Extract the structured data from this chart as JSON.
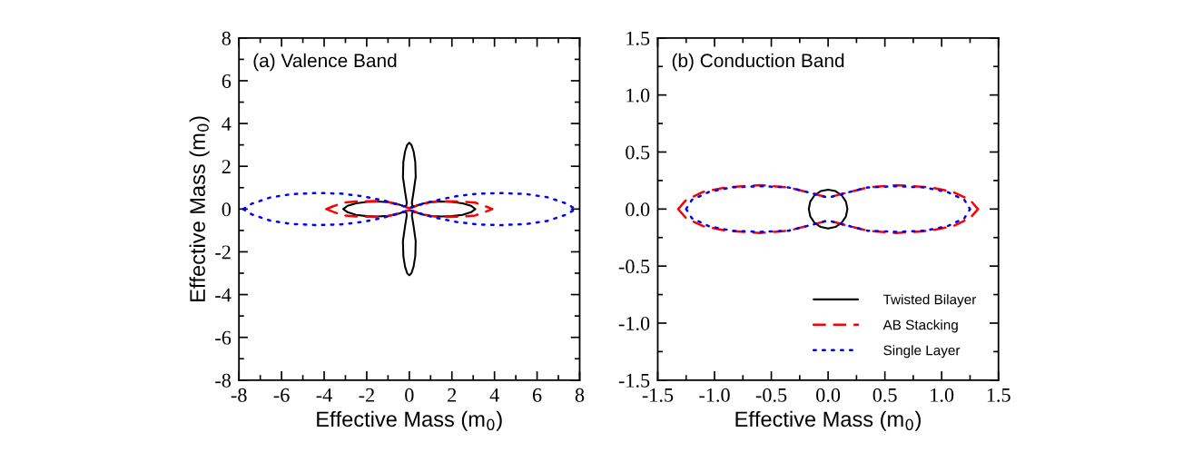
{
  "chart_data": [
    {
      "type": "line",
      "title": "(a) Valence Band",
      "xlabel": "Effective Mass (m$_{0}$)",
      "ylabel": "Effective Mass (m$_{0}$)",
      "xlim": [
        -8,
        8
      ],
      "ylim": [
        -8,
        8
      ],
      "xticks": [
        -8,
        -6,
        -4,
        -2,
        0,
        2,
        4,
        6,
        8
      ],
      "yticks": [
        -8,
        -6,
        -4,
        -2,
        0,
        2,
        4,
        6,
        8
      ],
      "grid": false,
      "legend": false,
      "series": [
        {
          "color": "#000000",
          "line_style": "solid",
          "x": [
            -3.1,
            -2.9,
            -2.5,
            -2.0,
            -1.5,
            -1.0,
            -0.6,
            -0.3,
            -0.15,
            -0.12,
            null,
            -0.3,
            -0.2,
            -0.12,
            null,
            -0.3,
            -0.28,
            -0.2,
            -0.1,
            0,
            0.1,
            0.2,
            0.28,
            0.3,
            null,
            0.12,
            0.2,
            0.3,
            null,
            0.12,
            0.15,
            0.3,
            0.6,
            1.0,
            1.5,
            2.0,
            2.5,
            2.9,
            3.1,
            null,
            -3.1,
            -2.9,
            -2.5,
            -2.0,
            -1.5,
            -1.0,
            -0.6,
            -0.3,
            -0.15,
            -0.12,
            null,
            -0.3,
            -0.2,
            -0.12,
            null,
            -0.3,
            -0.28,
            -0.2,
            -0.1,
            0,
            0.1,
            0.2,
            0.28,
            0.3,
            null,
            0.12,
            0.2,
            0.3,
            null,
            0.12,
            0.15,
            0.3,
            0.6,
            1.0,
            1.5,
            2.0,
            2.5,
            2.9,
            3.1
          ],
          "values": [
            0,
            0.15,
            0.27,
            0.33,
            0.35,
            0.32,
            0.25,
            0.15,
            0.12,
            0.3,
            null,
            1.5,
            0.8,
            0.3,
            null,
            1.5,
            2.2,
            2.7,
            3.0,
            3.1,
            3.0,
            2.7,
            2.2,
            1.5,
            null,
            0.3,
            0.8,
            1.5,
            null,
            0.3,
            0.12,
            0.15,
            0.25,
            0.32,
            0.35,
            0.33,
            0.27,
            0.15,
            0,
            null,
            0,
            -0.15,
            -0.27,
            -0.33,
            -0.35,
            -0.32,
            -0.25,
            -0.15,
            -0.12,
            -0.3,
            null,
            -1.5,
            -0.8,
            -0.3,
            null,
            -1.5,
            -2.2,
            -2.7,
            -3.0,
            -3.1,
            -3.0,
            -2.7,
            -2.2,
            -1.5,
            null,
            -0.3,
            -0.8,
            -1.5,
            null,
            -0.3,
            -0.12,
            -0.15,
            -0.25,
            -0.32,
            -0.35,
            -0.33,
            -0.27,
            -0.15,
            0
          ]
        },
        {
          "color": "#ff0000",
          "line_style": "dashed",
          "x": [
            -3.9,
            -3.6,
            -3.1,
            -2.5,
            -1.6,
            -1.0,
            -0.5,
            -0.15,
            0,
            0.15,
            0.5,
            1.0,
            1.6,
            2.5,
            3.1,
            3.6,
            3.9,
            null,
            -3.9,
            -3.6,
            -3.1,
            -2.5,
            -1.6,
            -1.0,
            -0.5,
            -0.15,
            0,
            0.15,
            0.5,
            1.0,
            1.6,
            2.5,
            3.1,
            3.6,
            3.9
          ],
          "values": [
            0,
            0.12,
            0.3,
            0.35,
            0.37,
            0.33,
            0.2,
            0.08,
            0.05,
            0.08,
            0.2,
            0.33,
            0.37,
            0.35,
            0.3,
            0.12,
            0,
            null,
            0,
            -0.12,
            -0.3,
            -0.35,
            -0.37,
            -0.33,
            -0.2,
            -0.08,
            -0.05,
            -0.08,
            -0.2,
            -0.33,
            -0.37,
            -0.35,
            -0.3,
            -0.12,
            0
          ]
        },
        {
          "color": "#0000ff",
          "line_style": "dotted",
          "x": [
            -7.8,
            -7.4,
            -6.5,
            -5.5,
            -4.3,
            -3.2,
            -2.2,
            -1.2,
            -0.5,
            0,
            0.5,
            1.2,
            2.2,
            3.2,
            4.3,
            5.5,
            6.5,
            7.4,
            7.8,
            null,
            -7.8,
            -7.4,
            -6.5,
            -5.5,
            -4.3,
            -3.2,
            -2.2,
            -1.2,
            -0.5,
            0,
            0.5,
            1.2,
            2.2,
            3.2,
            4.3,
            5.5,
            6.5,
            7.4,
            7.8
          ],
          "values": [
            0,
            0.25,
            0.55,
            0.7,
            0.75,
            0.72,
            0.6,
            0.4,
            0.2,
            0.05,
            0.2,
            0.4,
            0.6,
            0.72,
            0.75,
            0.7,
            0.55,
            0.25,
            0,
            null,
            0,
            -0.25,
            -0.55,
            -0.7,
            -0.75,
            -0.72,
            -0.6,
            -0.4,
            -0.2,
            -0.05,
            -0.2,
            -0.4,
            -0.6,
            -0.72,
            -0.75,
            -0.7,
            -0.55,
            -0.25,
            0
          ]
        }
      ]
    },
    {
      "type": "line",
      "title": "(b) Conduction Band",
      "xlabel": "Effective Mass (m$_{0}$)",
      "xlim": [
        -1.5,
        1.5
      ],
      "ylim": [
        -1.5,
        1.5
      ],
      "xticks": [
        -1.5,
        {
          "value": -1,
          "label": "-1.0"
        },
        -0.5,
        {
          "value": 0,
          "label": "0.0"
        },
        0.5,
        {
          "value": 1,
          "label": "1.0"
        },
        1.5
      ],
      "yticks": [
        -1.5,
        {
          "value": -1,
          "label": "-1.0"
        },
        -0.5,
        {
          "value": 0,
          "label": "0.0"
        },
        0.5,
        {
          "value": 1,
          "label": "1.0"
        },
        1.5
      ],
      "grid": false,
      "legend": "bottom right",
      "series": [
        {
          "name": "Twisted Bilayer",
          "color": "#000000",
          "line_style": "solid",
          "x": [
            -0.17,
            -0.157,
            -0.12,
            -0.065,
            0,
            0.065,
            0.12,
            0.157,
            0.17,
            null,
            -0.17,
            -0.157,
            -0.12,
            -0.065,
            0,
            0.065,
            0.12,
            0.157,
            0.17
          ],
          "values": [
            0,
            0.065,
            0.12,
            0.157,
            0.17,
            0.157,
            0.12,
            0.065,
            0,
            null,
            0,
            -0.065,
            -0.12,
            -0.157,
            -0.17,
            -0.157,
            -0.12,
            -0.065,
            0
          ]
        },
        {
          "name": "AB Stacking",
          "color": "#ff0000",
          "line_style": "dashed",
          "x": [
            -1.32,
            -1.25,
            -1.1,
            -0.9,
            -0.6,
            -0.35,
            -0.15,
            0,
            0.15,
            0.35,
            0.6,
            0.9,
            1.1,
            1.25,
            1.32,
            null,
            -1.32,
            -1.25,
            -1.1,
            -0.9,
            -0.6,
            -0.35,
            -0.15,
            0,
            0.15,
            0.35,
            0.6,
            0.9,
            1.1,
            1.25,
            1.32
          ],
          "values": [
            0,
            0.08,
            0.15,
            0.19,
            0.21,
            0.19,
            0.14,
            0.1,
            0.14,
            0.19,
            0.21,
            0.19,
            0.15,
            0.08,
            0,
            null,
            0,
            -0.08,
            -0.15,
            -0.19,
            -0.21,
            -0.19,
            -0.14,
            -0.1,
            -0.14,
            -0.19,
            -0.21,
            -0.19,
            -0.15,
            -0.08,
            0
          ]
        },
        {
          "name": "Single Layer",
          "color": "#0000ff",
          "line_style": "dotted",
          "x": [
            -1.25,
            -1.2,
            -1.05,
            -0.85,
            -0.6,
            -0.35,
            -0.15,
            0,
            0.15,
            0.35,
            0.6,
            0.85,
            1.05,
            1.2,
            1.25,
            null,
            -1.25,
            -1.2,
            -1.05,
            -0.85,
            -0.6,
            -0.35,
            -0.15,
            0,
            0.15,
            0.35,
            0.6,
            0.85,
            1.05,
            1.2,
            1.25
          ],
          "values": [
            0,
            0.08,
            0.15,
            0.19,
            0.2,
            0.19,
            0.14,
            0.1,
            0.14,
            0.19,
            0.2,
            0.19,
            0.15,
            0.08,
            0,
            null,
            0,
            -0.08,
            -0.15,
            -0.19,
            -0.2,
            -0.19,
            -0.14,
            -0.1,
            -0.14,
            -0.19,
            -0.2,
            -0.19,
            -0.15,
            -0.08,
            0
          ]
        }
      ]
    }
  ]
}
